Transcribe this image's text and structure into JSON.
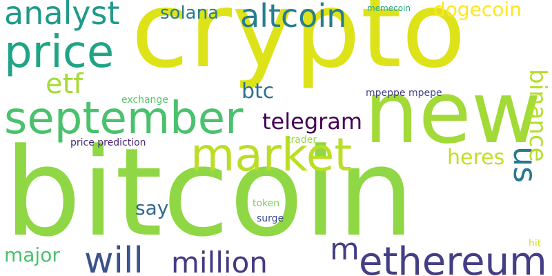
{
  "words": {
    "bitcoin": {
      "text": "bitcoin",
      "color": "#8fd744"
    },
    "crypto": {
      "text": "crypto",
      "color": "#dde318"
    },
    "new": {
      "text": "new",
      "color": "#a2da37"
    },
    "market": {
      "text": "market",
      "color": "#bade28"
    },
    "september": {
      "text": "september",
      "color": "#4ac16d"
    },
    "price": {
      "text": "price",
      "color": "#20a486"
    },
    "analyst": {
      "text": "analyst",
      "color": "#1f9a8a"
    },
    "altcoin": {
      "text": "altcoin",
      "color": "#287d8e"
    },
    "ethereum": {
      "text": "ethereum",
      "color": "#433e85"
    },
    "will": {
      "text": "will",
      "color": "#3b528b"
    },
    "million": {
      "text": "million",
      "color": "#443a83"
    },
    "us": {
      "text": "us",
      "color": "#2a788e"
    },
    "m": {
      "text": "m",
      "color": "#433e85"
    },
    "binance": {
      "text": "binance",
      "color": "#b5de2b"
    },
    "telegram": {
      "text": "telegram",
      "color": "#440154"
    },
    "dogecoin": {
      "text": "dogecoin",
      "color": "#fde725"
    },
    "solana": {
      "text": "solana",
      "color": "#277f8e"
    },
    "etf": {
      "text": "etf",
      "color": "#a5db36"
    },
    "btc": {
      "text": "btc",
      "color": "#2c728e"
    },
    "heres": {
      "text": "heres",
      "color": "#c2df23"
    },
    "say": {
      "text": "say",
      "color": "#31688e"
    },
    "major": {
      "text": "major",
      "color": "#4ac16d"
    },
    "memecoin": {
      "text": "memecoin",
      "color": "#22a884"
    },
    "mpeppe_mpepe": {
      "text": "mpeppe mpepe",
      "color": "#433e85"
    },
    "exchange": {
      "text": "exchange",
      "color": "#54c568"
    },
    "price_prediction": {
      "text": "price prediction",
      "color": "#482576"
    },
    "trader": {
      "text": "trader",
      "color": "#9bd93c"
    },
    "token": {
      "text": "token",
      "color": "#7ad151"
    },
    "surge": {
      "text": "surge",
      "color": "#3e4a89"
    },
    "hit": {
      "text": "hit",
      "color": "#d8e219"
    }
  }
}
